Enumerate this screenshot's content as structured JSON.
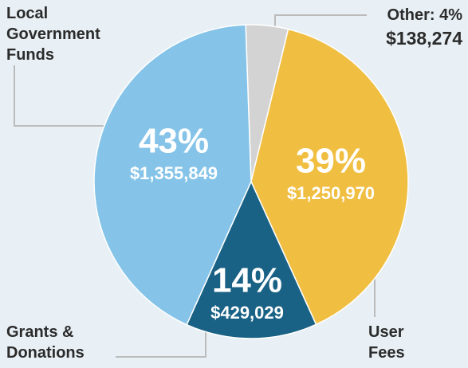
{
  "chart_data": {
    "type": "pie",
    "categories": [
      "Other:",
      "User Fees",
      "Grants & Donations",
      "Local Government Funds"
    ],
    "values": [
      138274,
      1250970,
      429029,
      1355849
    ],
    "value_labels": [
      "$138,274",
      "$1,250,970",
      "$429,029",
      "$1,355,849"
    ],
    "percent_labels": [
      "4%",
      "39%",
      "14%",
      "43%"
    ],
    "colors": [
      "#d3d3d3",
      "#f0be41",
      "#1a6285",
      "#85c4e8"
    ]
  }
}
